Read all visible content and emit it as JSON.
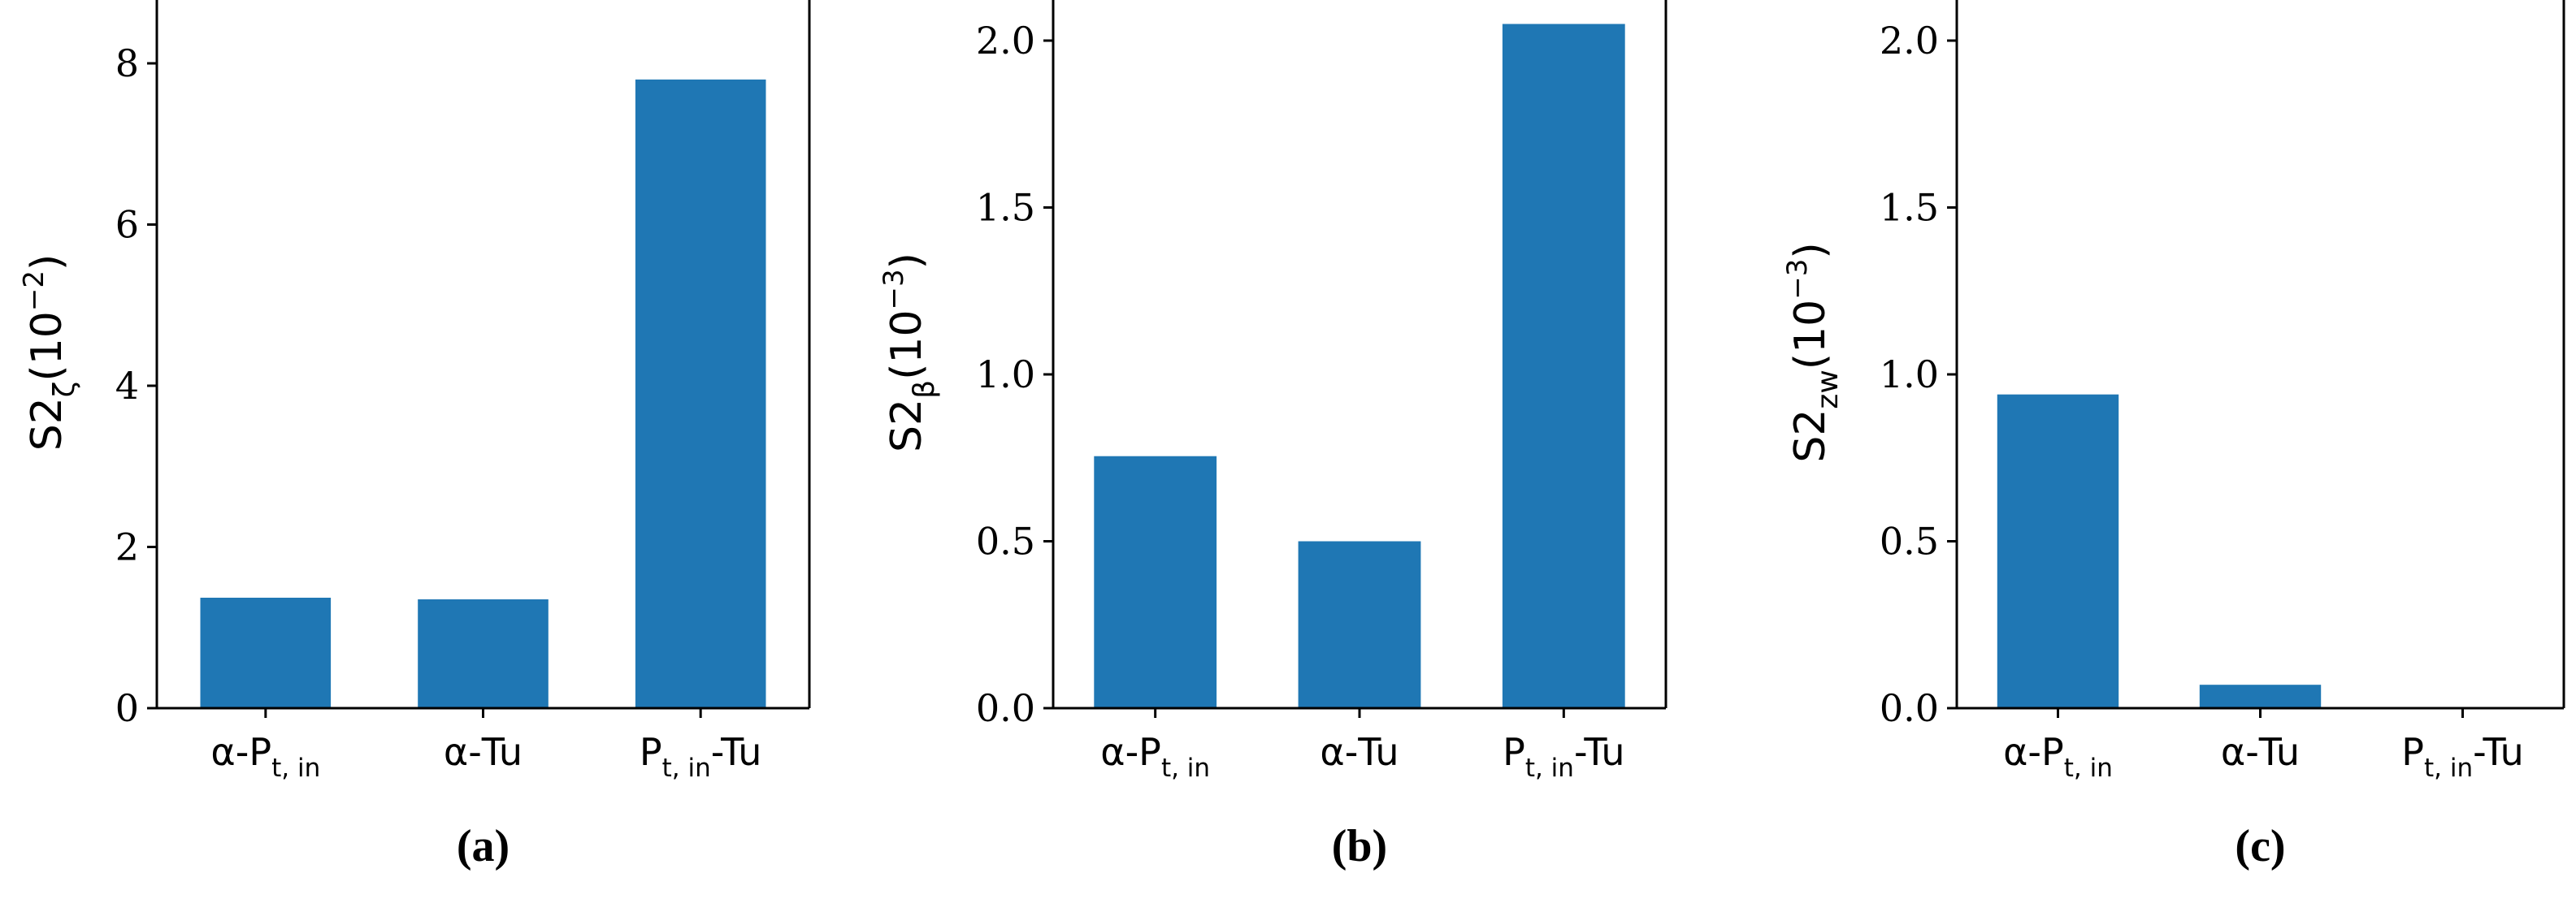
{
  "chart_data": [
    {
      "type": "bar",
      "panel_label": "(a)",
      "ylabel": {
        "base": "S2",
        "sub": "ζ",
        "prefix": "(10",
        "sup": "−2",
        "suffix": ")"
      },
      "categories": [
        {
          "pre": "α-P",
          "sub": "t, in",
          "post": ""
        },
        {
          "pre": "α-Tu",
          "sub": "",
          "post": ""
        },
        {
          "pre": "P",
          "sub": "t, in",
          "post": "-Tu"
        }
      ],
      "values": [
        1.37,
        1.35,
        7.8
      ],
      "ylim": [
        0,
        8.2
      ],
      "yticks": [
        0,
        2,
        4,
        6,
        8
      ],
      "ytick_labels": [
        "0",
        "2",
        "4",
        "6",
        "8"
      ],
      "color": "#1f77b4",
      "grid": false
    },
    {
      "type": "bar",
      "panel_label": "(b)",
      "ylabel": {
        "base": "S2",
        "sub": "β",
        "prefix": "(10",
        "sup": "−3",
        "suffix": ")"
      },
      "categories": [
        {
          "pre": "α-P",
          "sub": "t, in",
          "post": ""
        },
        {
          "pre": "α-Tu",
          "sub": "",
          "post": ""
        },
        {
          "pre": "P",
          "sub": "t, in",
          "post": "-Tu"
        }
      ],
      "values": [
        0.755,
        0.5,
        2.05
      ],
      "ylim": [
        0,
        2.15
      ],
      "yticks": [
        0,
        0.5,
        1.0,
        1.5,
        2.0
      ],
      "ytick_labels": [
        "0.0",
        "0.5",
        "1.0",
        "1.5",
        "2.0"
      ],
      "color": "#1f77b4",
      "grid": false
    },
    {
      "type": "bar",
      "panel_label": "(c)",
      "ylabel": {
        "base": "S2",
        "sub": "zw",
        "prefix": "(10",
        "sup": "−3",
        "suffix": ")"
      },
      "categories": [
        {
          "pre": "α-P",
          "sub": "t, in",
          "post": ""
        },
        {
          "pre": "α-Tu",
          "sub": "",
          "post": ""
        },
        {
          "pre": "P",
          "sub": "t, in",
          "post": "-Tu"
        }
      ],
      "values": [
        0.94,
        0.07,
        0.0
      ],
      "ylim": [
        0,
        2.15
      ],
      "yticks": [
        0,
        0.5,
        1.0,
        1.5,
        2.0
      ],
      "ytick_labels": [
        "0.0",
        "0.5",
        "1.0",
        "1.5",
        "2.0"
      ],
      "color": "#1f77b4",
      "grid": false
    }
  ]
}
